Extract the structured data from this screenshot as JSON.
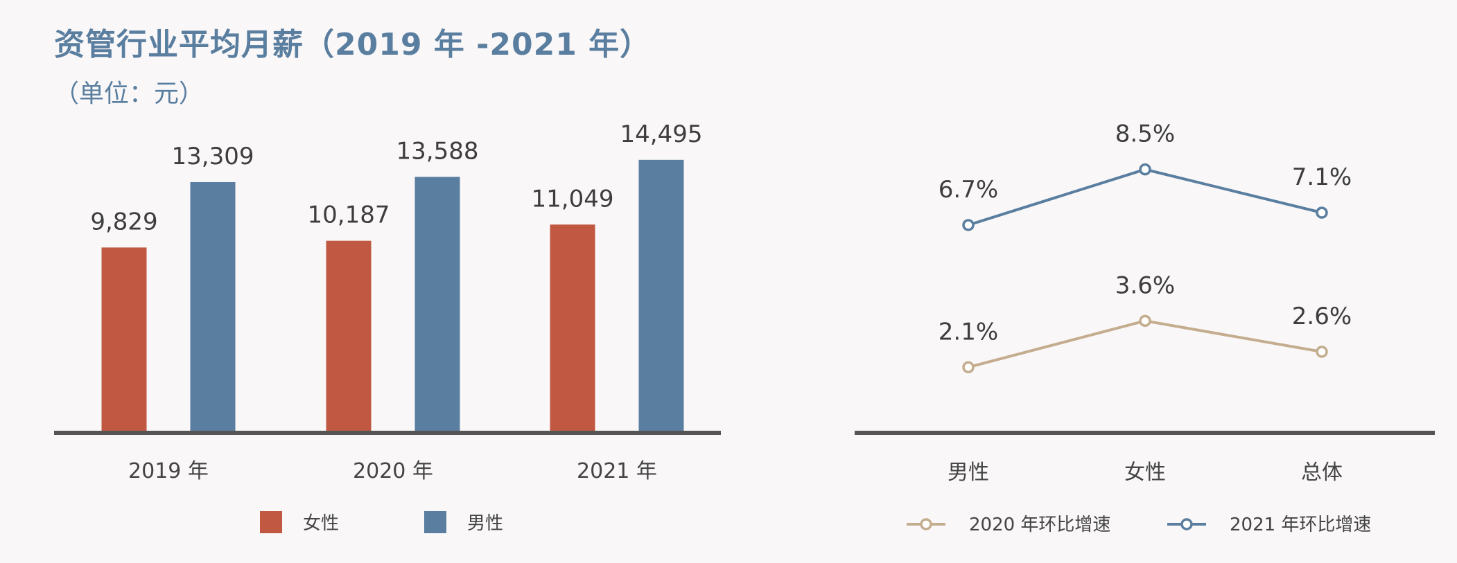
{
  "header": {
    "title": "资管行业平均月薪（2019 年 -2021 年）",
    "subtitle": "（单位：元）"
  },
  "colors": {
    "female": "#c05842",
    "male": "#5a7e9f",
    "growth_2020": "#c4ad8f",
    "growth_2021": "#5a7e9f",
    "axis": "#555555"
  },
  "chart_data": [
    {
      "type": "bar",
      "categories": [
        "2019 年",
        "2020 年",
        "2021 年"
      ],
      "series": [
        {
          "name": "女性",
          "values": [
            9829,
            10187,
            11049
          ],
          "labels": [
            "9,829",
            "10,187",
            "11,049"
          ]
        },
        {
          "name": "男性",
          "values": [
            13309,
            13588,
            14495
          ],
          "labels": [
            "13,309",
            "13,588",
            "14,495"
          ]
        }
      ],
      "ylim": [
        0,
        16000
      ],
      "grid": false,
      "legend": "bottom"
    },
    {
      "type": "line",
      "categories": [
        "男性",
        "女性",
        "总体"
      ],
      "series": [
        {
          "name": "2020 年环比增速",
          "values": [
            2.1,
            3.6,
            2.6
          ],
          "labels": [
            "2.1%",
            "3.6%",
            "2.6%"
          ]
        },
        {
          "name": "2021 年环比增速",
          "values": [
            6.7,
            8.5,
            7.1
          ],
          "labels": [
            "6.7%",
            "8.5%",
            "7.1%"
          ]
        }
      ],
      "ylim": [
        0,
        9.5
      ],
      "grid": false,
      "legend": "bottom"
    }
  ]
}
